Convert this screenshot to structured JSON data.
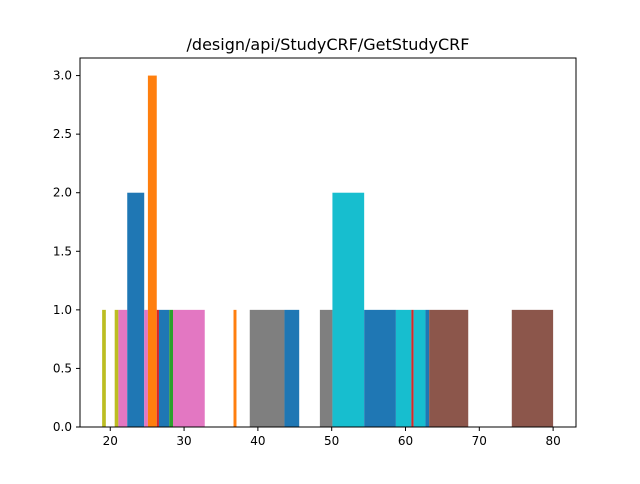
{
  "chart_data": {
    "type": "bar",
    "title": "/design/api/StudyCRF/GetStudyCRF",
    "xlabel": "",
    "ylabel": "",
    "xlim": [
      15.9,
      83.1
    ],
    "ylim": [
      0,
      3.15
    ],
    "x_ticks": [
      20,
      30,
      40,
      50,
      60,
      70,
      80
    ],
    "x_tick_labels": [
      "20",
      "30",
      "40",
      "50",
      "60",
      "70",
      "80"
    ],
    "y_ticks": [
      0,
      0.5,
      1,
      1.5,
      2,
      2.5,
      3
    ],
    "y_tick_labels": [
      "0.0",
      "0.5",
      "1.0",
      "1.5",
      "2.0",
      "2.5",
      "3.0"
    ],
    "grid": false,
    "legend": "none",
    "bars": [
      {
        "x0": 18.9,
        "x1": 19.4,
        "value": 1,
        "color": "#bcbd22"
      },
      {
        "x0": 20.6,
        "x1": 21.1,
        "value": 1,
        "color": "#bcbd22"
      },
      {
        "x0": 21.1,
        "x1": 22.3,
        "value": 1,
        "color": "#e377c2"
      },
      {
        "x0": 22.3,
        "x1": 24.6,
        "value": 2,
        "color": "#1f77b4"
      },
      {
        "x0": 24.6,
        "x1": 25.1,
        "value": 1,
        "color": "#e377c2"
      },
      {
        "x0": 25.1,
        "x1": 26.3,
        "value": 3,
        "color": "#ff7f0e"
      },
      {
        "x0": 26.3,
        "x1": 26.6,
        "value": 1,
        "color": "#d62728"
      },
      {
        "x0": 26.6,
        "x1": 28.0,
        "value": 1,
        "color": "#1f77b4"
      },
      {
        "x0": 28.0,
        "x1": 28.5,
        "value": 1,
        "color": "#2ca02c"
      },
      {
        "x0": 28.5,
        "x1": 32.8,
        "value": 1,
        "color": "#e377c2"
      },
      {
        "x0": 36.7,
        "x1": 37.1,
        "value": 1,
        "color": "#ff7f0e"
      },
      {
        "x0": 38.9,
        "x1": 43.6,
        "value": 1,
        "color": "#7f7f7f"
      },
      {
        "x0": 43.6,
        "x1": 45.6,
        "value": 1,
        "color": "#1f77b4"
      },
      {
        "x0": 48.4,
        "x1": 50.1,
        "value": 1,
        "color": "#7f7f7f"
      },
      {
        "x0": 50.1,
        "x1": 54.4,
        "value": 2,
        "color": "#17becf"
      },
      {
        "x0": 54.4,
        "x1": 58.7,
        "value": 1,
        "color": "#1f77b4"
      },
      {
        "x0": 58.7,
        "x1": 60.8,
        "value": 1,
        "color": "#17becf"
      },
      {
        "x0": 60.8,
        "x1": 61.1,
        "value": 1,
        "color": "#d62728"
      },
      {
        "x0": 61.1,
        "x1": 62.7,
        "value": 1,
        "color": "#17becf"
      },
      {
        "x0": 62.7,
        "x1": 63.2,
        "value": 1,
        "color": "#1f77b4"
      },
      {
        "x0": 63.2,
        "x1": 68.5,
        "value": 1,
        "color": "#8c564b"
      },
      {
        "x0": 74.4,
        "x1": 80.0,
        "value": 1,
        "color": "#8c564b"
      }
    ]
  }
}
